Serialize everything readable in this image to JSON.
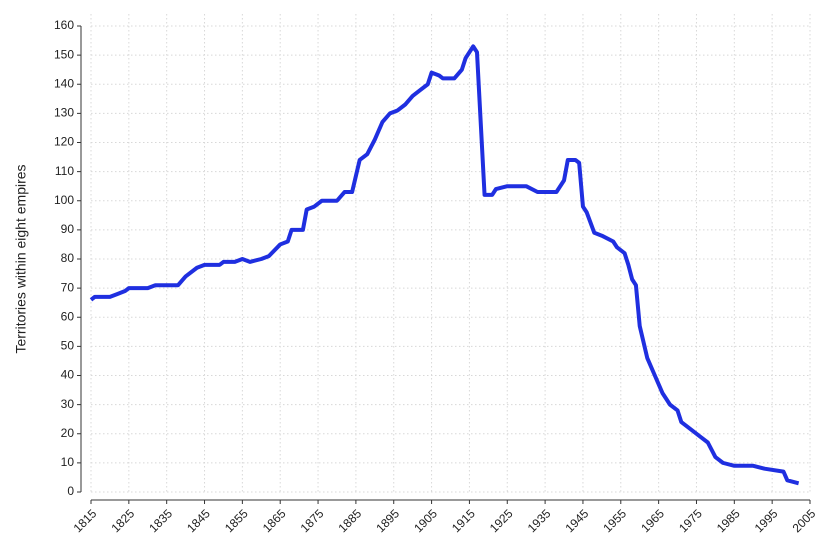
{
  "chart_data": {
    "type": "line",
    "y_label": "Territories within eight empires",
    "x": [
      1815,
      1816,
      1820,
      1822,
      1824,
      1825,
      1830,
      1832,
      1838,
      1840,
      1843,
      1845,
      1849,
      1850,
      1853,
      1855,
      1857,
      1860,
      1862,
      1865,
      1867,
      1868,
      1871,
      1872,
      1874,
      1876,
      1880,
      1882,
      1884,
      1886,
      1888,
      1890,
      1892,
      1894,
      1896,
      1898,
      1900,
      1902,
      1904,
      1905,
      1907,
      1908,
      1911,
      1913,
      1914,
      1916,
      1917,
      1919,
      1921,
      1922,
      1925,
      1930,
      1933,
      1938,
      1940,
      1941,
      1943,
      1944,
      1945,
      1946,
      1948,
      1950,
      1953,
      1954,
      1956,
      1957,
      1958,
      1959,
      1960,
      1962,
      1964,
      1966,
      1968,
      1970,
      1971,
      1974,
      1976,
      1978,
      1980,
      1982,
      1985,
      1990,
      1993,
      1998,
      1999,
      2002
    ],
    "series": [
      {
        "name": "Territories",
        "color": "#1f2fe0",
        "values": [
          66,
          67,
          67,
          68,
          69,
          70,
          70,
          71,
          71,
          74,
          77,
          78,
          78,
          79,
          79,
          80,
          79,
          80,
          81,
          85,
          86,
          90,
          90,
          97,
          98,
          100,
          100,
          103,
          103,
          114,
          116,
          121,
          127,
          130,
          131,
          133,
          136,
          138,
          140,
          144,
          143,
          142,
          142,
          145,
          149,
          153,
          151,
          102,
          102,
          104,
          105,
          105,
          103,
          103,
          107,
          114,
          114,
          113,
          98,
          96,
          89,
          88,
          86,
          84,
          82,
          78,
          73,
          71,
          57,
          46,
          40,
          34,
          30,
          28,
          24,
          21,
          19,
          17,
          12,
          10,
          9,
          9,
          8,
          7,
          4,
          3
        ]
      }
    ],
    "xlim": [
      1815,
      2005
    ],
    "xticks": [
      1815,
      1825,
      1835,
      1845,
      1855,
      1865,
      1875,
      1885,
      1895,
      1905,
      1915,
      1925,
      1935,
      1945,
      1955,
      1965,
      1975,
      1985,
      1995,
      2005
    ],
    "ylim": [
      0,
      160
    ],
    "yticks": [
      0,
      10,
      20,
      30,
      40,
      50,
      60,
      70,
      80,
      90,
      100,
      110,
      120,
      130,
      140,
      150,
      160
    ],
    "grid": true
  }
}
